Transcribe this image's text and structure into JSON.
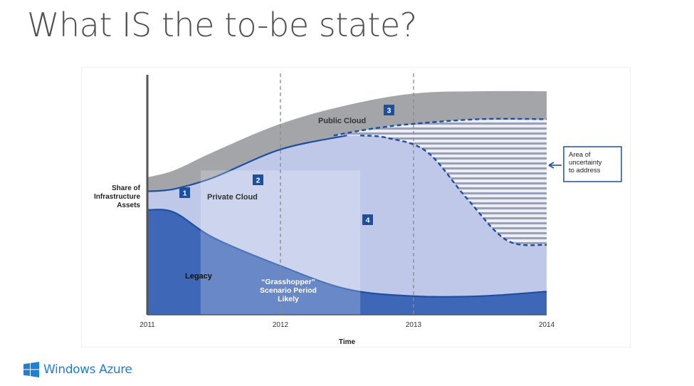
{
  "slide": {
    "title": "What IS the to-be state?"
  },
  "footer": {
    "logo_icon": "windows-logo-icon",
    "brand": "Windows Azure",
    "brand_color": "#1e7fd6"
  },
  "chart_data": {
    "type": "area",
    "xlabel": "Time",
    "ylabel_lines": [
      "Share of",
      "Infrastructure",
      "Assets"
    ],
    "x_ticks": [
      "2011",
      "2012",
      "2013",
      "2014"
    ],
    "xlim": [
      2011,
      2014
    ],
    "ylim": [
      0,
      100
    ],
    "grid": false,
    "dashed_vertical_lines_at": [
      2012,
      2013
    ],
    "series": [
      {
        "name": "Legacy",
        "color": "#3f67b8",
        "x": [
          2011.0,
          2011.2,
          2011.5,
          2012.0,
          2012.5,
          2013.0,
          2013.5,
          2014.0
        ],
        "values": [
          45,
          44,
          33,
          21,
          11,
          8,
          8,
          10
        ]
      },
      {
        "name": "Private Cloud",
        "color": "#bfc8e8",
        "x": [
          2011.0,
          2011.2,
          2011.5,
          2012.0,
          2012.5,
          2013.0,
          2013.5,
          2014.0
        ],
        "values": [
          53,
          54,
          59,
          71,
          77,
          77,
          78,
          78
        ]
      },
      {
        "name": "Public Cloud",
        "color": "#a4a5a8",
        "x": [
          2011.0,
          2011.2,
          2011.5,
          2012.0,
          2012.5,
          2013.0,
          2013.5,
          2014.0
        ],
        "values": [
          59,
          62,
          70,
          82,
          90,
          95,
          96,
          96
        ]
      }
    ],
    "uncertainty_boundaries": {
      "upper_dashed": {
        "x": [
          2012.4,
          2012.7,
          2013.0,
          2013.5,
          2014.0
        ],
        "values": [
          77,
          80,
          82,
          84,
          84
        ]
      },
      "lower_dashed": {
        "x": [
          2012.6,
          2012.8,
          2013.1,
          2013.4,
          2013.7,
          2014.0
        ],
        "values": [
          77,
          76,
          70,
          50,
          32,
          30
        ]
      }
    },
    "highlight_region": {
      "x_range": [
        2011.4,
        2012.6
      ],
      "label_lines": [
        "“Grasshopper”",
        "Scenario Period",
        "Likely"
      ]
    },
    "markers": [
      {
        "number": "1"
      },
      {
        "number": "2"
      },
      {
        "number": "3"
      },
      {
        "number": "4"
      }
    ],
    "callout": {
      "lines": [
        "Area of",
        "uncertainty",
        "to address"
      ]
    },
    "colors": {
      "marker_fill": "#1d4fa1",
      "axis": "#555555",
      "dashed": "#8a8a8a",
      "hatch": "#9ca0b4",
      "uncertainty_line": "#1d4fa1",
      "callout_border": "#1d4fa1"
    }
  }
}
